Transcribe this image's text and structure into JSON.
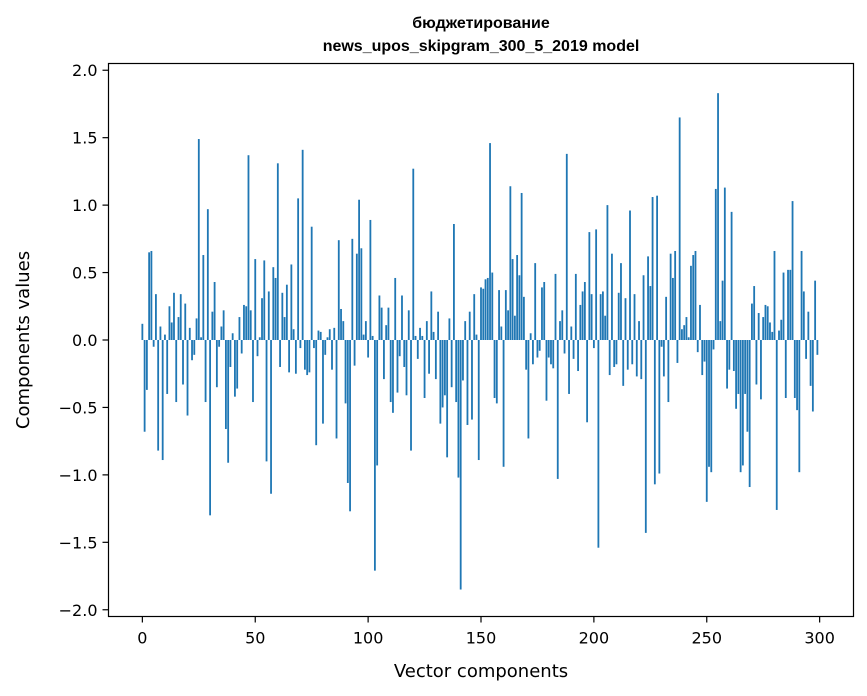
{
  "chart_data": {
    "type": "bar",
    "title": "бюджетирование",
    "subtitle": "news_upos_skipgram_300_5_2019 model",
    "xlabel": "Vector components",
    "ylabel": "Components values",
    "xlim": [
      -15,
      315
    ],
    "ylim": [
      -2.05,
      2.05
    ],
    "x_ticks": [
      0,
      50,
      100,
      150,
      200,
      250,
      300
    ],
    "x_tick_labels": [
      "0",
      "50",
      "100",
      "150",
      "200",
      "250",
      "300"
    ],
    "y_ticks": [
      2.0,
      1.5,
      1.0,
      0.5,
      0.0,
      -0.5,
      -1.0,
      -1.5,
      -2.0
    ],
    "y_tick_labels": [
      "2.0",
      "1.5",
      "1.0",
      "0.5",
      "0.0",
      "−0.5",
      "−1.0",
      "−1.5",
      "−2.0"
    ],
    "bar_color": "#1f77b4",
    "grid": false,
    "x": "0..299",
    "values": [
      0.12,
      -0.68,
      -0.37,
      0.65,
      0.66,
      -0.05,
      0.34,
      -0.82,
      0.1,
      -0.89,
      0.04,
      -0.4,
      0.25,
      0.13,
      0.35,
      -0.46,
      0.17,
      0.34,
      -0.33,
      0.27,
      -0.56,
      0.09,
      -0.15,
      -0.11,
      0.16,
      1.49,
      0.02,
      0.63,
      -0.46,
      0.97,
      -1.3,
      0.21,
      0.43,
      -0.35,
      -0.05,
      0.1,
      0.22,
      -0.66,
      -0.91,
      -0.2,
      0.05,
      -0.42,
      -0.36,
      0.17,
      -0.1,
      0.26,
      0.25,
      1.37,
      0.22,
      -0.46,
      0.6,
      -0.12,
      0.02,
      0.31,
      0.59,
      -0.9,
      0.36,
      -1.14,
      0.54,
      0.46,
      1.31,
      -0.2,
      0.35,
      0.17,
      0.41,
      -0.24,
      0.56,
      0.08,
      -0.25,
      1.05,
      -0.06,
      1.41,
      -0.22,
      -0.26,
      -0.24,
      0.84,
      -0.06,
      -0.78,
      0.07,
      0.06,
      -0.62,
      -0.11,
      0.02,
      0.08,
      -0.22,
      0.09,
      -0.73,
      0.74,
      0.23,
      0.14,
      -0.47,
      -1.06,
      -1.27,
      0.75,
      -0.19,
      0.64,
      1.04,
      0.68,
      0.04,
      0.14,
      -0.13,
      0.89,
      0.03,
      -1.71,
      -0.93,
      0.33,
      0.24,
      -0.29,
      0.11,
      0.24,
      -0.46,
      -0.54,
      0.46,
      -0.39,
      -0.12,
      0.33,
      -0.2,
      -0.41,
      0.22,
      -0.82,
      1.27,
      0.03,
      -0.14,
      0.09,
      0.03,
      -0.43,
      0.14,
      -0.25,
      0.36,
      0.06,
      -0.29,
      0.21,
      -0.62,
      -0.5,
      -0.41,
      -0.87,
      0.16,
      -0.35,
      0.86,
      -0.46,
      -1.02,
      -1.85,
      -0.3,
      0.14,
      -0.63,
      0.21,
      -0.59,
      0.34,
      0.04,
      -0.89,
      0.39,
      0.38,
      0.45,
      0.46,
      1.46,
      0.5,
      -0.43,
      -0.47,
      0.37,
      0.1,
      -0.94,
      0.37,
      0.22,
      1.14,
      0.6,
      0.18,
      0.63,
      0.48,
      1.09,
      0.32,
      -0.22,
      -0.73,
      0.05,
      -0.18,
      0.57,
      -0.13,
      -0.08,
      0.39,
      0.43,
      -0.45,
      -0.13,
      -0.18,
      -0.21,
      0.49,
      -1.03,
      0.14,
      0.22,
      -0.1,
      1.38,
      -0.4,
      0.1,
      -0.14,
      0.49,
      -0.23,
      0.26,
      0.36,
      0.43,
      -0.61,
      0.8,
      0.34,
      -0.06,
      0.82,
      -1.54,
      0.34,
      0.36,
      0.18,
      1.0,
      -0.26,
      0.64,
      -0.2,
      -0.18,
      0.35,
      0.57,
      -0.34,
      0.31,
      -0.22,
      0.96,
      -0.18,
      0.34,
      -0.27,
      0.14,
      -0.29,
      0.48,
      -1.43,
      0.62,
      0.4,
      1.06,
      -1.07,
      1.07,
      -0.99,
      -0.05,
      -0.27,
      0.32,
      -0.46,
      0.64,
      0.46,
      0.66,
      -0.17,
      1.65,
      0.08,
      0.11,
      0.17,
      0.02,
      0.55,
      0.63,
      0.66,
      -0.09,
      0.26,
      -0.26,
      -0.16,
      -1.2,
      -0.94,
      -0.98,
      -0.07,
      1.12,
      1.83,
      0.14,
      0.44,
      1.13,
      -0.36,
      -0.22,
      0.95,
      -0.23,
      -0.51,
      -0.4,
      -0.98,
      -0.93,
      -0.4,
      -0.68,
      -1.09,
      0.27,
      0.4,
      -0.33,
      0.2,
      -0.44,
      0.17,
      0.26,
      0.25,
      0.13,
      0.06,
      0.66,
      -1.26,
      0.07,
      0.15,
      0.5,
      -0.43,
      0.52,
      0.52,
      1.03,
      -0.43,
      -0.52,
      -0.98,
      0.66,
      0.36,
      -0.14,
      0.21,
      -0.34,
      -0.53,
      0.44,
      -0.11
    ]
  }
}
